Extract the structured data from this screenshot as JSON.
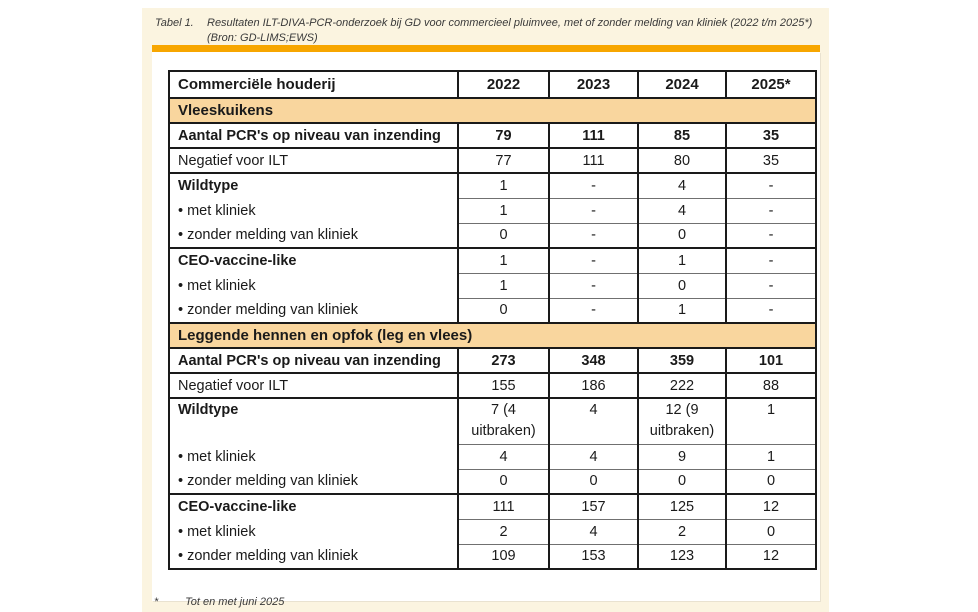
{
  "caption": {
    "label": "Tabel 1.",
    "line1": "Resultaten ILT-DIVA-PCR-onderzoek bij GD voor commercieel pluimvee, met of zonder melding van kliniek (2022 t/m 2025*)",
    "line2": "(Bron: GD-LIMS;EWS)"
  },
  "colors": {
    "panel_bg": "#FBF4E0",
    "accent_bar": "#F7A600",
    "section_row_bg": "#F9D69E",
    "table_border": "#1A1A1A",
    "text": "#1A1A1A"
  },
  "table": {
    "columns": [
      "Commerciële houderij",
      "2022",
      "2023",
      "2024",
      "2025*"
    ],
    "sections": [
      {
        "title": "Vleeskuikens",
        "rows": [
          {
            "label": "Aantal PCR's op niveau van inzending",
            "label_bold": true,
            "values_bold": true,
            "values": [
              "79",
              "111",
              "85",
              "35"
            ]
          },
          {
            "label": "Negatief voor ILT",
            "values": [
              "77",
              "111",
              "80",
              "35"
            ]
          },
          {
            "label": "Wildtype",
            "label_bold": true,
            "values": [
              "1",
              "-",
              "4",
              "-"
            ]
          },
          {
            "label": "• met kliniek",
            "sub": true,
            "values": [
              "1",
              "-",
              "4",
              "-"
            ]
          },
          {
            "label": "• zonder melding van kliniek",
            "sub": true,
            "values": [
              "0",
              "-",
              "0",
              "-"
            ]
          },
          {
            "label": "CEO-vaccine-like",
            "label_bold": true,
            "values": [
              "1",
              "-",
              "1",
              "-"
            ]
          },
          {
            "label": "• met kliniek",
            "sub": true,
            "values": [
              "1",
              "-",
              "0",
              "-"
            ]
          },
          {
            "label": "• zonder melding van kliniek",
            "sub": true,
            "values": [
              "0",
              "-",
              "1",
              "-"
            ]
          }
        ]
      },
      {
        "title": "Leggende hennen en opfok (leg en vlees)",
        "rows": [
          {
            "label": "Aantal PCR's op niveau van inzending",
            "label_bold": true,
            "values_bold": true,
            "values": [
              "273",
              "348",
              "359",
              "101"
            ]
          },
          {
            "label": "Negatief voor ILT",
            "values": [
              "155",
              "186",
              "222",
              "88"
            ]
          },
          {
            "label": "Wildtype",
            "label_bold": true,
            "tall": true,
            "values": [
              "7 (4 uitbraken)",
              "4",
              "12 (9 uitbraken)",
              "1"
            ]
          },
          {
            "label": "• met kliniek",
            "sub": true,
            "values": [
              "4",
              "4",
              "9",
              "1"
            ]
          },
          {
            "label": "• zonder melding van kliniek",
            "sub": true,
            "values": [
              "0",
              "0",
              "0",
              "0"
            ]
          },
          {
            "label": "CEO-vaccine-like",
            "label_bold": true,
            "values": [
              "111",
              "157",
              "125",
              "12"
            ]
          },
          {
            "label": "• met kliniek",
            "sub": true,
            "values": [
              "2",
              "4",
              "2",
              "0"
            ]
          },
          {
            "label": "• zonder melding van kliniek",
            "sub": true,
            "values": [
              "109",
              "153",
              "123",
              "12"
            ]
          }
        ]
      }
    ]
  },
  "footnote": {
    "marker": "*",
    "text": "Tot en met juni 2025"
  }
}
